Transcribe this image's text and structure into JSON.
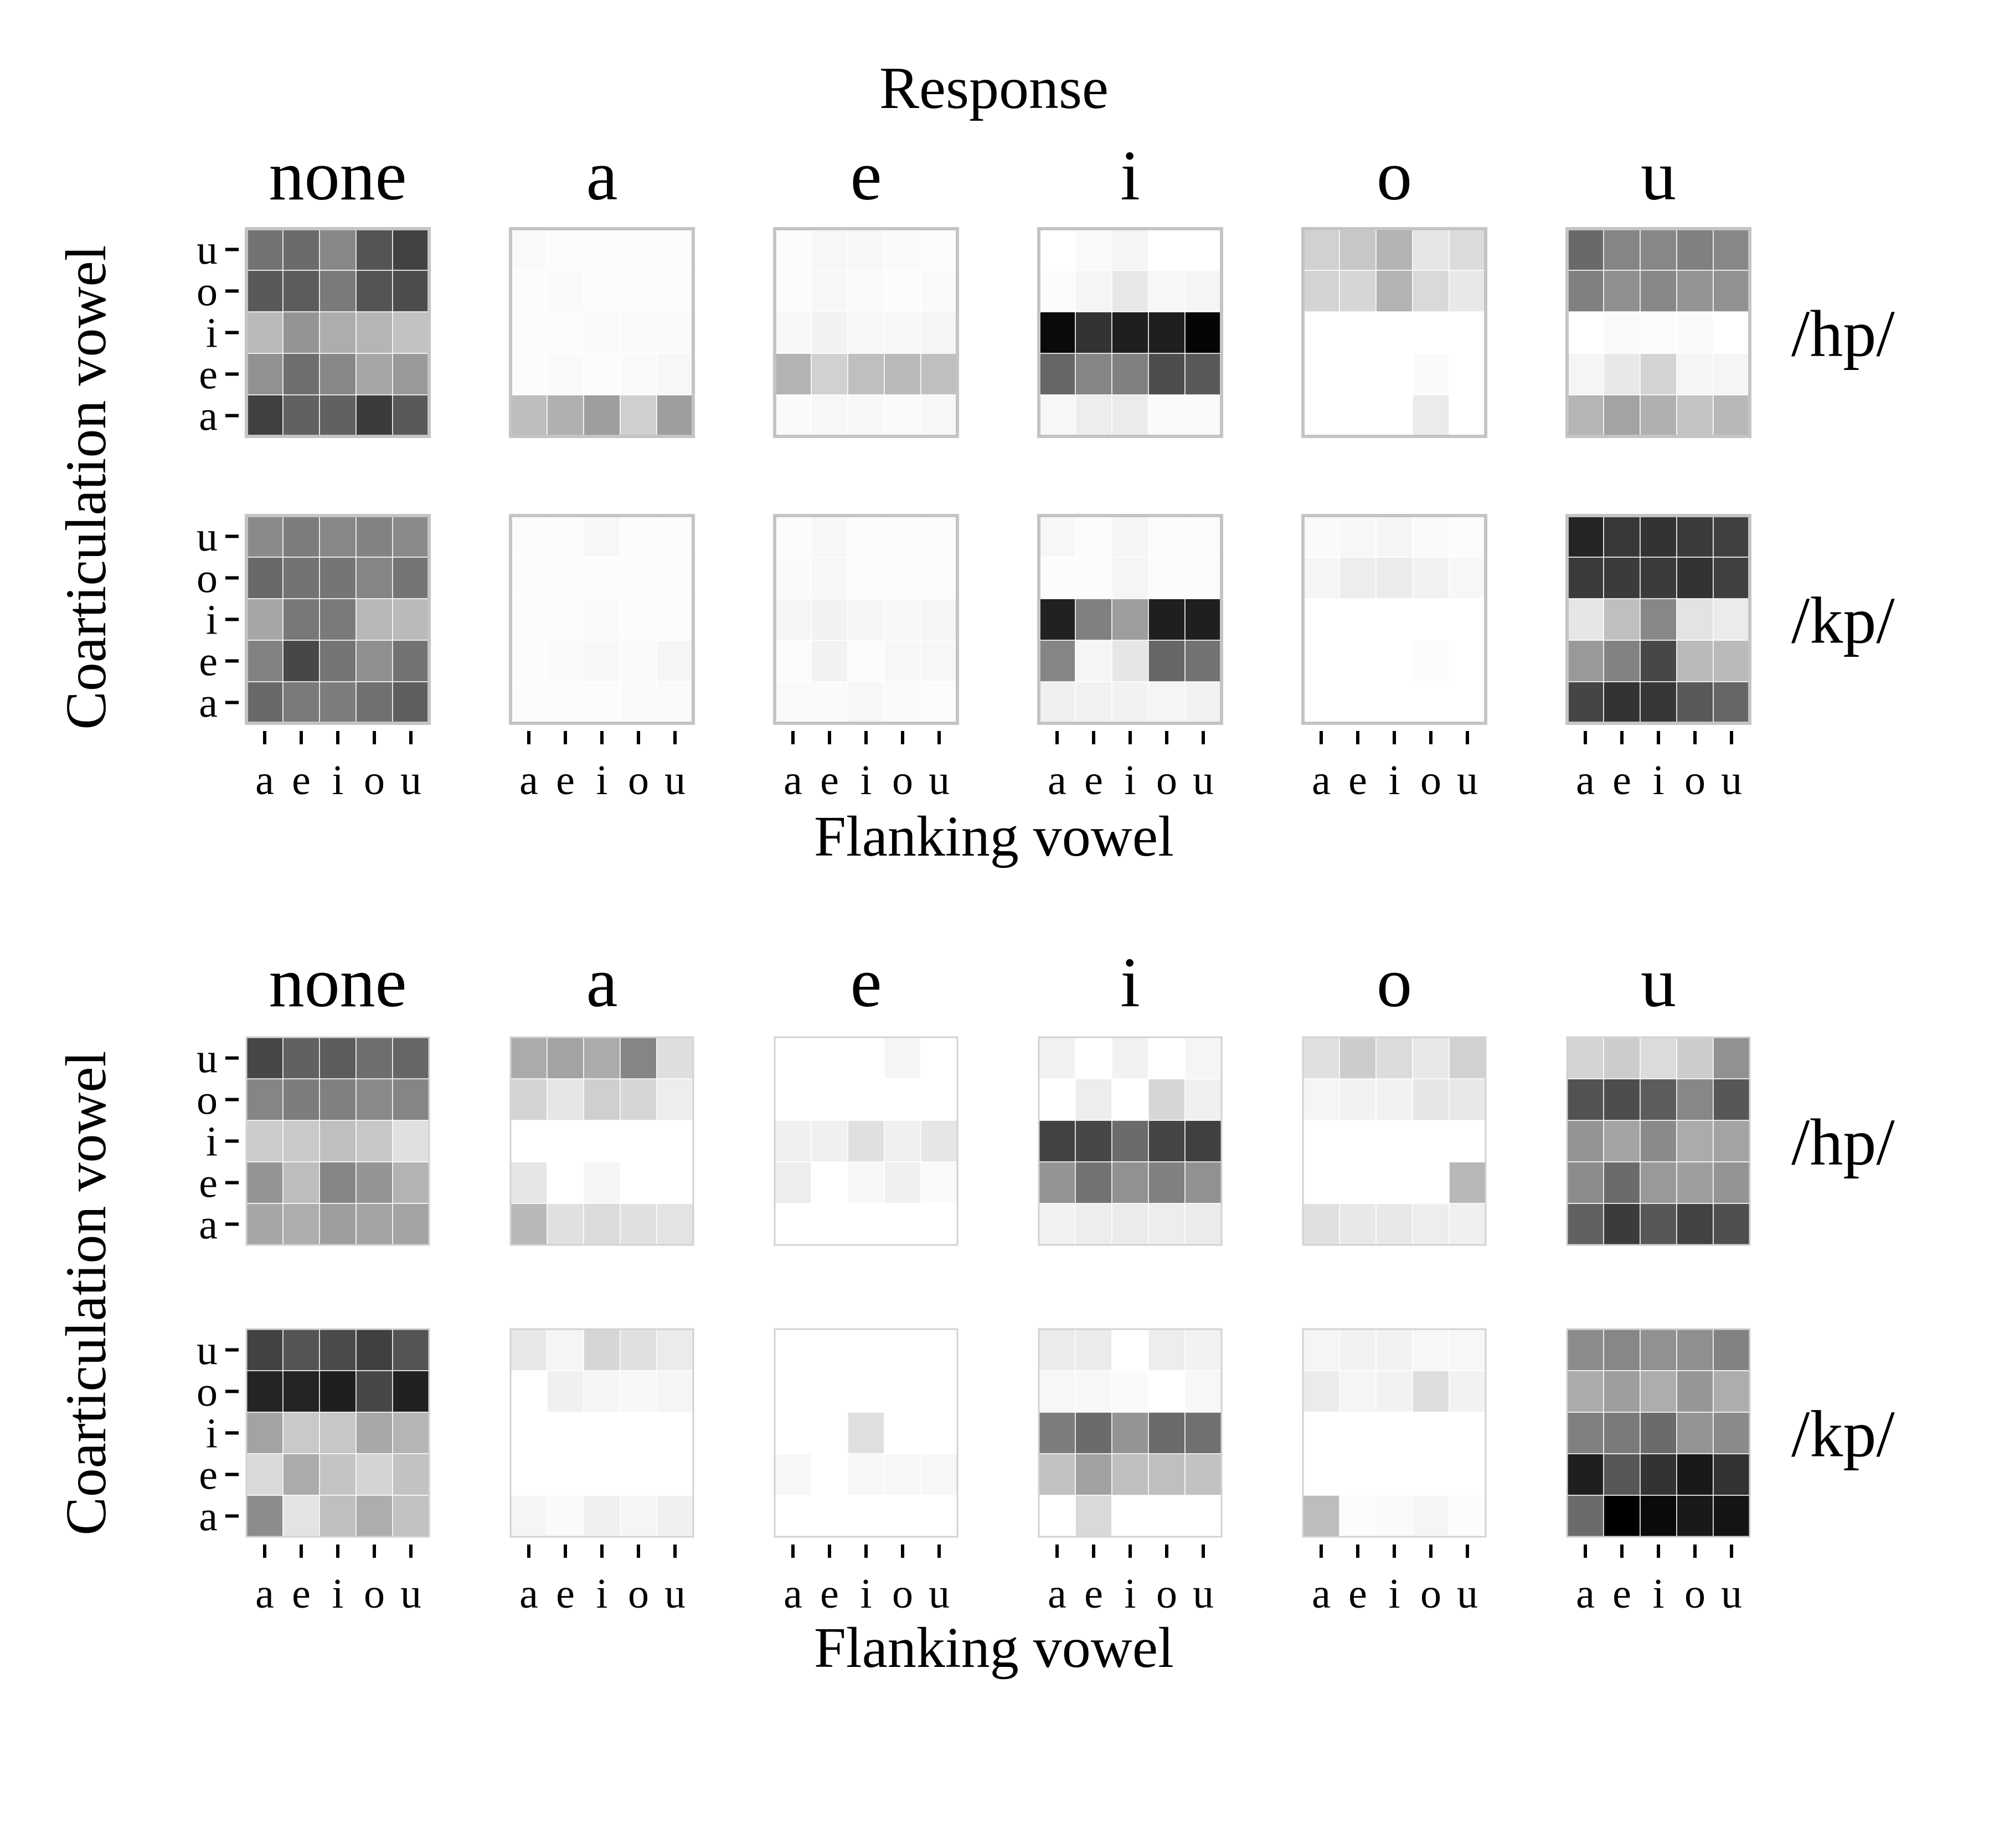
{
  "chart_data": {
    "type": "heatmap",
    "title": "Response",
    "xlabel": "Flanking vowel",
    "ylabel": "Coarticulation vowel",
    "responses": [
      "none",
      "a",
      "e",
      "i",
      "o",
      "u"
    ],
    "rows": [
      "/hp/",
      "/kp/"
    ],
    "x_categories": [
      "a",
      "e",
      "i",
      "o",
      "u"
    ],
    "y_categories": [
      "a",
      "e",
      "i",
      "o",
      "u"
    ],
    "value_encoding": "proportion of responses; 0 = white, 1 = black",
    "panels": [
      {
        "matrices": {
          "/hp/": {
            "none": [
              [
                0.75,
                0.62,
                0.62,
                0.77,
                0.65
              ],
              [
                0.43,
                0.57,
                0.47,
                0.35,
                0.4
              ],
              [
                0.27,
                0.42,
                0.32,
                0.29,
                0.24
              ],
              [
                0.65,
                0.64,
                0.52,
                0.67,
                0.7
              ],
              [
                0.55,
                0.58,
                0.47,
                0.67,
                0.74
              ]
            ],
            "a": [
              [
                0.26,
                0.31,
                0.38,
                0.19,
                0.38
              ],
              [
                0.01,
                0.02,
                0.01,
                0.02,
                0.03
              ],
              [
                0.01,
                0.01,
                0.02,
                0.02,
                0.02
              ],
              [
                0.01,
                0.02,
                0.01,
                0.01,
                0.01
              ],
              [
                0.02,
                0.01,
                0.01,
                0.01,
                0.01
              ]
            ],
            "e": [
              [
                0.02,
                0.03,
                0.03,
                0.02,
                0.03
              ],
              [
                0.3,
                0.18,
                0.25,
                0.27,
                0.25
              ],
              [
                0.03,
                0.05,
                0.03,
                0.03,
                0.04
              ],
              [
                0.01,
                0.03,
                0.02,
                0.01,
                0.02
              ],
              [
                0.01,
                0.03,
                0.03,
                0.02,
                0.01
              ]
            ],
            "i": [
              [
                0.03,
                0.07,
                0.08,
                0.02,
                0.02
              ],
              [
                0.6,
                0.48,
                0.5,
                0.7,
                0.65
              ],
              [
                0.96,
                0.8,
                0.88,
                0.88,
                0.98
              ],
              [
                0.01,
                0.04,
                0.09,
                0.03,
                0.04
              ],
              [
                0.0,
                0.02,
                0.04,
                0.0,
                0.0
              ]
            ],
            "o": [
              [
                0.0,
                0.0,
                0.0,
                0.08,
                0.0
              ],
              [
                0.0,
                0.0,
                0.0,
                0.02,
                0.0
              ],
              [
                0.0,
                0.0,
                0.0,
                0.0,
                0.0
              ],
              [
                0.17,
                0.16,
                0.3,
                0.15,
                0.09
              ],
              [
                0.18,
                0.22,
                0.3,
                0.1,
                0.14
              ]
            ],
            "u": [
              [
                0.29,
                0.36,
                0.31,
                0.23,
                0.28
              ],
              [
                0.04,
                0.09,
                0.17,
                0.04,
                0.04
              ],
              [
                0.0,
                0.02,
                0.01,
                0.02,
                0.0
              ],
              [
                0.5,
                0.44,
                0.47,
                0.42,
                0.43
              ],
              [
                0.59,
                0.48,
                0.47,
                0.5,
                0.47
              ]
            ]
          },
          "/kp/": {
            "none": [
              [
                0.59,
                0.52,
                0.51,
                0.56,
                0.63
              ],
              [
                0.49,
                0.72,
                0.54,
                0.44,
                0.55
              ],
              [
                0.35,
                0.53,
                0.52,
                0.28,
                0.27
              ],
              [
                0.59,
                0.55,
                0.54,
                0.48,
                0.54
              ],
              [
                0.46,
                0.51,
                0.47,
                0.49,
                0.46
              ]
            ],
            "a": [
              [
                0.01,
                0.01,
                0.01,
                0.02,
                0.02
              ],
              [
                0.01,
                0.02,
                0.03,
                0.02,
                0.04
              ],
              [
                0.01,
                0.01,
                0.02,
                0.01,
                0.01
              ],
              [
                0.01,
                0.01,
                0.01,
                0.01,
                0.01
              ],
              [
                0.01,
                0.01,
                0.03,
                0.01,
                0.01
              ]
            ],
            "e": [
              [
                0.02,
                0.02,
                0.03,
                0.02,
                0.01
              ],
              [
                0.01,
                0.05,
                0.01,
                0.03,
                0.03
              ],
              [
                0.04,
                0.05,
                0.04,
                0.03,
                0.04
              ],
              [
                0.02,
                0.03,
                0.01,
                0.01,
                0.01
              ],
              [
                0.01,
                0.03,
                0.01,
                0.01,
                0.01
              ]
            ],
            "i": [
              [
                0.06,
                0.05,
                0.05,
                0.04,
                0.05
              ],
              [
                0.48,
                0.04,
                0.1,
                0.6,
                0.55
              ],
              [
                0.87,
                0.5,
                0.38,
                0.88,
                0.88
              ],
              [
                0.01,
                0.01,
                0.04,
                0.01,
                0.01
              ],
              [
                0.03,
                0.01,
                0.04,
                0.01,
                0.01
              ]
            ],
            "o": [
              [
                0.0,
                0.0,
                0.0,
                0.0,
                0.0
              ],
              [
                0.0,
                0.0,
                0.0,
                0.01,
                0.0
              ],
              [
                0.0,
                0.0,
                0.0,
                0.0,
                0.0
              ],
              [
                0.04,
                0.07,
                0.08,
                0.05,
                0.03
              ],
              [
                0.02,
                0.03,
                0.04,
                0.02,
                0.01
              ]
            ],
            "u": [
              [
                0.73,
                0.8,
                0.79,
                0.65,
                0.6
              ],
              [
                0.4,
                0.49,
                0.72,
                0.27,
                0.27
              ],
              [
                0.1,
                0.25,
                0.47,
                0.11,
                0.08
              ],
              [
                0.77,
                0.77,
                0.77,
                0.8,
                0.75
              ],
              [
                0.86,
                0.78,
                0.8,
                0.77,
                0.75
              ]
            ]
          }
        }
      },
      {
        "matrices": {
          "/hp/": {
            "none": [
              [
                0.35,
                0.32,
                0.38,
                0.36,
                0.36
              ],
              [
                0.42,
                0.26,
                0.48,
                0.42,
                0.3
              ],
              [
                0.2,
                0.21,
                0.25,
                0.22,
                0.12
              ],
              [
                0.48,
                0.51,
                0.5,
                0.46,
                0.48
              ],
              [
                0.72,
                0.62,
                0.64,
                0.57,
                0.6
              ]
            ],
            "a": [
              [
                0.28,
                0.12,
                0.14,
                0.12,
                0.11
              ],
              [
                0.1,
                0.0,
                0.04,
                0.0,
                0.0
              ],
              [
                0.0,
                0.0,
                0.0,
                0.0,
                0.0
              ],
              [
                0.17,
                0.1,
                0.19,
                0.16,
                0.07
              ],
              [
                0.33,
                0.36,
                0.33,
                0.48,
                0.13
              ]
            ],
            "e": [
              [
                0.0,
                0.0,
                0.0,
                0.0,
                0.0
              ],
              [
                0.07,
                0.0,
                0.03,
                0.06,
                0.02
              ],
              [
                0.06,
                0.06,
                0.12,
                0.06,
                0.1
              ],
              [
                0.0,
                0.0,
                0.0,
                0.0,
                0.0
              ],
              [
                0.0,
                0.0,
                0.0,
                0.04,
                0.0
              ]
            ],
            "i": [
              [
                0.05,
                0.07,
                0.08,
                0.07,
                0.08
              ],
              [
                0.42,
                0.55,
                0.43,
                0.5,
                0.43
              ],
              [
                0.74,
                0.72,
                0.58,
                0.73,
                0.75
              ],
              [
                0.0,
                0.07,
                0.0,
                0.16,
                0.06
              ],
              [
                0.05,
                0.0,
                0.05,
                0.0,
                0.04
              ]
            ],
            "o": [
              [
                0.12,
                0.09,
                0.09,
                0.07,
                0.06
              ],
              [
                0.0,
                0.0,
                0.0,
                0.0,
                0.28
              ],
              [
                0.0,
                0.0,
                0.0,
                0.0,
                0.0
              ],
              [
                0.04,
                0.05,
                0.05,
                0.1,
                0.09
              ],
              [
                0.12,
                0.2,
                0.14,
                0.09,
                0.18
              ]
            ],
            "u": [
              [
                0.62,
                0.77,
                0.66,
                0.74,
                0.69
              ],
              [
                0.45,
                0.58,
                0.4,
                0.38,
                0.42
              ],
              [
                0.42,
                0.36,
                0.46,
                0.33,
                0.36
              ],
              [
                0.68,
                0.7,
                0.64,
                0.47,
                0.66
              ],
              [
                0.17,
                0.2,
                0.14,
                0.2,
                0.43
              ]
            ]
          },
          "/kp/": {
            "none": [
              [
                0.45,
                0.11,
                0.25,
                0.32,
                0.24
              ],
              [
                0.15,
                0.33,
                0.23,
                0.17,
                0.24
              ],
              [
                0.36,
                0.21,
                0.22,
                0.34,
                0.29
              ],
              [
                0.86,
                0.86,
                0.88,
                0.72,
                0.87
              ],
              [
                0.74,
                0.67,
                0.71,
                0.75,
                0.67
              ]
            ],
            "a": [
              [
                0.04,
                0.02,
                0.06,
                0.04,
                0.06
              ],
              [
                0.0,
                0.0,
                0.0,
                0.0,
                0.0
              ],
              [
                0.0,
                0.0,
                0.0,
                0.0,
                0.0
              ],
              [
                0.0,
                0.06,
                0.04,
                0.03,
                0.04
              ],
              [
                0.09,
                0.04,
                0.16,
                0.12,
                0.08
              ]
            ],
            "e": [
              [
                0.0,
                0.0,
                0.0,
                0.0,
                0.0
              ],
              [
                0.03,
                0.0,
                0.03,
                0.03,
                0.03
              ],
              [
                0.0,
                0.0,
                0.12,
                0.0,
                0.0
              ],
              [
                0.0,
                0.0,
                0.0,
                0.0,
                0.0
              ],
              [
                0.0,
                0.0,
                0.0,
                0.0,
                0.0
              ]
            ],
            "i": [
              [
                0.0,
                0.15,
                0.0,
                0.0,
                0.0
              ],
              [
                0.24,
                0.37,
                0.25,
                0.25,
                0.24
              ],
              [
                0.51,
                0.58,
                0.42,
                0.58,
                0.56
              ],
              [
                0.03,
                0.03,
                0.02,
                0.0,
                0.03
              ],
              [
                0.08,
                0.08,
                0.0,
                0.07,
                0.05
              ]
            ],
            "o": [
              [
                0.26,
                0.01,
                0.02,
                0.04,
                0.01
              ],
              [
                0.0,
                0.0,
                0.0,
                0.0,
                0.0
              ],
              [
                0.0,
                0.0,
                0.0,
                0.0,
                0.0
              ],
              [
                0.08,
                0.04,
                0.05,
                0.13,
                0.05
              ],
              [
                0.04,
                0.05,
                0.05,
                0.03,
                0.03
              ]
            ],
            "u": [
              [
                0.58,
                1.0,
                0.96,
                0.9,
                0.92
              ],
              [
                0.88,
                0.66,
                0.8,
                0.9,
                0.8
              ],
              [
                0.5,
                0.52,
                0.58,
                0.42,
                0.46
              ],
              [
                0.33,
                0.38,
                0.32,
                0.41,
                0.32
              ],
              [
                0.45,
                0.47,
                0.43,
                0.44,
                0.49
              ]
            ]
          }
        }
      }
    ]
  }
}
